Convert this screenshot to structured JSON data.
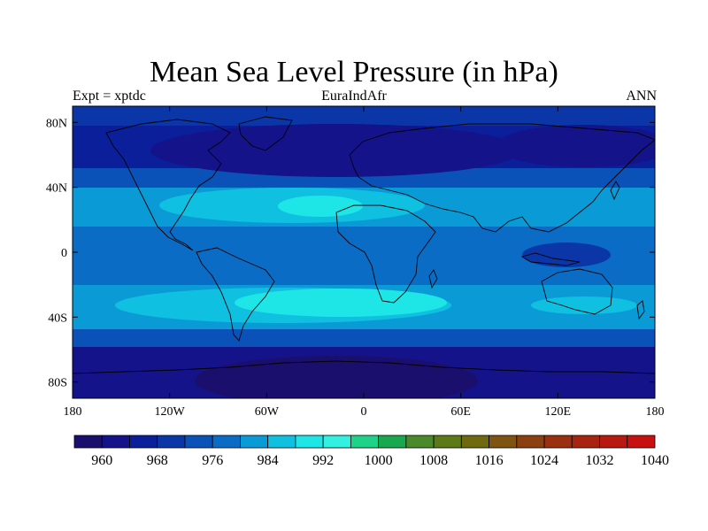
{
  "header": {
    "title": "Mean Sea Level Pressure (in hPa)",
    "left_label": "Expt = xptdc",
    "center_label": "EuraIndAfr",
    "right_label": "ANN"
  },
  "map": {
    "lat_ticks": [
      "80N",
      "40N",
      "0",
      "40S",
      "80S"
    ],
    "lon_ticks": [
      "180",
      "120W",
      "60W",
      "0",
      "60E",
      "120E",
      "180"
    ],
    "lat_values": [
      80,
      40,
      0,
      -40,
      -80
    ],
    "lon_values": [
      -180,
      -120,
      -60,
      0,
      60,
      120,
      180
    ],
    "lat_range": [
      -90,
      90
    ],
    "lon_range": [
      -180,
      180
    ]
  },
  "colorbar": {
    "labels": [
      "960",
      "968",
      "976",
      "984",
      "992",
      "1000",
      "1008",
      "1016",
      "1024",
      "1032",
      "1040"
    ],
    "colors": [
      "#1b0f6e",
      "#14138a",
      "#0a1f99",
      "#0a36a8",
      "#0a52b8",
      "#0a6cc4",
      "#0a9bd6",
      "#0fc0e0",
      "#1ee6e6",
      "#33f0e0",
      "#1ed287",
      "#1aa84e",
      "#4b8a2a",
      "#5c7a18",
      "#6f6a10",
      "#7f5410",
      "#8c4010",
      "#9a3010",
      "#a82410",
      "#b81810",
      "#c81010"
    ]
  },
  "chart_data": {
    "type": "heatmap",
    "title": "Mean Sea Level Pressure (in hPa)",
    "subtitle_left": "Expt = xptdc",
    "subtitle_center": "EuraIndAfr",
    "subtitle_right": "ANN",
    "x_range": [
      -180,
      180
    ],
    "y_range": [
      -90,
      90
    ],
    "x_ticks": [
      "180",
      "120W",
      "60W",
      "0",
      "60E",
      "120E",
      "180"
    ],
    "y_ticks": [
      "80N",
      "40N",
      "0",
      "40S",
      "80S"
    ],
    "colorbar_levels": [
      960,
      968,
      976,
      984,
      992,
      1000,
      1008,
      1016,
      1024,
      1032,
      1040
    ]
  }
}
